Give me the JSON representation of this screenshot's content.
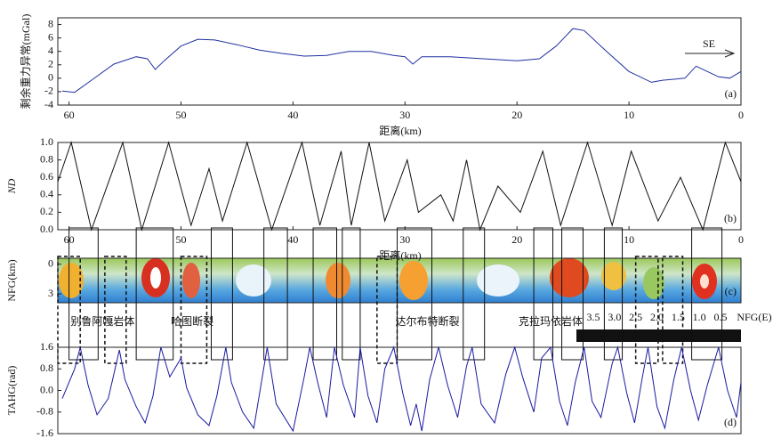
{
  "chart_data": [
    {
      "type": "line",
      "y_label": "剩余重力异常(mGal)",
      "x_label": "距离(km)",
      "annotation": "(a)",
      "direction": "SE",
      "xlim": [
        61,
        0
      ],
      "ylim": [
        -4,
        9
      ],
      "xticks": [
        60,
        50,
        40,
        30,
        20,
        10,
        0
      ],
      "yticks": [
        -4,
        -2,
        0,
        2,
        4,
        6,
        8
      ],
      "series": [
        {
          "color": "#2030a0",
          "x": [
            60.6,
            59.5,
            58,
            56,
            54,
            53,
            52.3,
            51.5,
            50,
            48.5,
            47,
            45,
            43,
            41,
            39,
            37,
            35,
            33,
            31,
            30,
            29.3,
            28.5,
            26,
            23,
            20,
            18,
            16.5,
            15,
            14,
            12,
            10,
            8,
            7,
            5,
            4,
            3,
            2,
            1,
            0
          ],
          "values": [
            -1.9,
            -2.1,
            -0.3,
            2.1,
            3.2,
            2.9,
            1.3,
            2.6,
            4.8,
            5.8,
            5.7,
            5.0,
            4.2,
            3.7,
            3.3,
            3.4,
            4.0,
            4.0,
            3.4,
            3.2,
            2.1,
            3.2,
            3.2,
            2.9,
            2.6,
            2.9,
            4.8,
            7.4,
            7.1,
            4.0,
            1.0,
            -0.6,
            -0.3,
            0.0,
            1.8,
            1.0,
            0.2,
            0.0,
            1.0
          ]
        }
      ]
    },
    {
      "type": "line",
      "y_label": "ND",
      "x_label": "距离(km)",
      "annotation": "(b)",
      "xlim": [
        61,
        0
      ],
      "ylim": [
        0,
        1
      ],
      "xticks": [
        60,
        50,
        40,
        30,
        20,
        10,
        0
      ],
      "yticks": [
        {
          "value": 0,
          "label": "0.0"
        },
        0.2,
        0.4,
        0.6,
        0.8,
        {
          "value": 1,
          "label": "1.0"
        }
      ],
      "series": [
        {
          "color": "#111111",
          "x": [
            61.0,
            59.8,
            58.0,
            55.2,
            53.5,
            51.1,
            49.1,
            47.5,
            46.3,
            44.1,
            41.9,
            39.2,
            37.6,
            35.7,
            34.8,
            33.2,
            31.8,
            29.8,
            28.8,
            26.8,
            25.7,
            24.5,
            23.3,
            21.7,
            19.7,
            17.7,
            16.1,
            13.7,
            11.5,
            9.8,
            7.4,
            5.4,
            3.4,
            1.4,
            0
          ],
          "values": [
            0.55,
            1.0,
            0.0,
            1.0,
            0.0,
            1.0,
            0.05,
            0.7,
            0.1,
            1.0,
            0.0,
            1.0,
            0.05,
            0.9,
            0.05,
            1.0,
            0.1,
            0.8,
            0.2,
            0.4,
            0.1,
            0.8,
            0.0,
            0.5,
            0.2,
            0.9,
            0.05,
            1.0,
            0.05,
            0.9,
            0.1,
            0.6,
            0.0,
            1.0,
            0.55
          ]
        }
      ]
    },
    {
      "type": "heatmap",
      "y_label": "NFG(km)",
      "annotation": "(c)",
      "ylim": [
        -0.6,
        3.9
      ],
      "yticks": [
        0,
        3
      ],
      "labels": [
        "别鲁阿嘎岩体",
        "哈图断裂",
        "达尔布特断裂",
        "克拉玛依岩体"
      ],
      "label_x": [
        57,
        49,
        28,
        17
      ],
      "scale_label": "NFG(E)",
      "scale_ticks": [
        3.5,
        {
          "value": 3,
          "label": "3.0"
        },
        2.5,
        {
          "value": 2,
          "label": "2.0"
        },
        1.5,
        {
          "value": 1,
          "label": "1.0"
        },
        0.5
      ],
      "solid_boxes": [
        [
          60.0,
          57.4
        ],
        [
          54.0,
          50.7
        ],
        [
          47.3,
          45.4
        ],
        [
          42.6,
          40.5
        ],
        [
          38.2,
          36.1
        ],
        [
          35.6,
          34.0
        ],
        [
          30.7,
          27.6
        ],
        [
          24.8,
          22.9
        ],
        [
          18.5,
          16.8
        ],
        [
          16.0,
          14.1
        ],
        [
          12.2,
          10.6
        ],
        [
          4.4,
          1.7
        ]
      ],
      "dashed_boxes": [
        [
          61.0,
          59.0
        ],
        [
          56.8,
          54.9
        ],
        [
          50.0,
          47.7
        ],
        [
          32.5,
          30.7
        ],
        [
          9.4,
          7.4
        ],
        [
          7.0,
          5.2
        ]
      ]
    },
    {
      "type": "line",
      "y_label": "TAHG(rad)",
      "annotation": "(d)",
      "xlim": [
        61,
        0
      ],
      "ylim": [
        -1.6,
        1.6
      ],
      "yticks": [
        -1.6,
        -0.8,
        {
          "value": 0,
          "label": "0.0"
        },
        0.8,
        1.6
      ],
      "series": [
        {
          "color": "#1a1aa0",
          "x": [
            60.6,
            59.5,
            59,
            58.3,
            57.5,
            56.5,
            55.5,
            55,
            54,
            53.2,
            52.5,
            51.8,
            51,
            50,
            49.5,
            48.5,
            47.5,
            46.8,
            46,
            45.5,
            44.5,
            43.5,
            42.3,
            41.5,
            40,
            39,
            38.5,
            37.8,
            37,
            36.3,
            35.5,
            34.5,
            34,
            33.3,
            32.5,
            31.8,
            31,
            30.2,
            29.5,
            29,
            28.5,
            27.8,
            27,
            26.2,
            25.3,
            24.5,
            24,
            23.2,
            22,
            21,
            20.2,
            19.5,
            18.5,
            17.8,
            17,
            16.2,
            15.5,
            14.8,
            14,
            13.3,
            12.5,
            11.5,
            11,
            10.2,
            9.5,
            8.8,
            8.3,
            7.5,
            6.8,
            6,
            5.3,
            4.5,
            3.8,
            3,
            2,
            1.2,
            0.4,
            0
          ],
          "values": [
            -0.3,
            0.8,
            1.6,
            0.2,
            -0.9,
            -0.3,
            1.5,
            0.4,
            -0.6,
            -1.2,
            -0.2,
            1.6,
            0.5,
            1.2,
            0.1,
            -0.9,
            -1.3,
            -0.2,
            1.6,
            0.3,
            -0.8,
            -1.4,
            1.6,
            -0.5,
            -1.5,
            0.5,
            1.6,
            0.3,
            -1.0,
            1.6,
            0.2,
            -1.0,
            1.6,
            -0.2,
            -1.2,
            0.8,
            1.6,
            -0.1,
            -1.3,
            -0.5,
            -1.5,
            0.4,
            1.6,
            0.2,
            -1.0,
            0.9,
            1.6,
            -0.5,
            -1.2,
            0.6,
            1.6,
            0.5,
            -0.8,
            1.2,
            1.6,
            -0.4,
            -1.3,
            0.3,
            1.6,
            -0.4,
            -1.0,
            1.0,
            1.6,
            -0.1,
            -1.2,
            0.5,
            1.6,
            -0.6,
            -1.4,
            0.4,
            1.6,
            0.0,
            -1.1,
            0.2,
            1.6,
            0.0,
            -1.0,
            0.3
          ]
        }
      ]
    }
  ]
}
